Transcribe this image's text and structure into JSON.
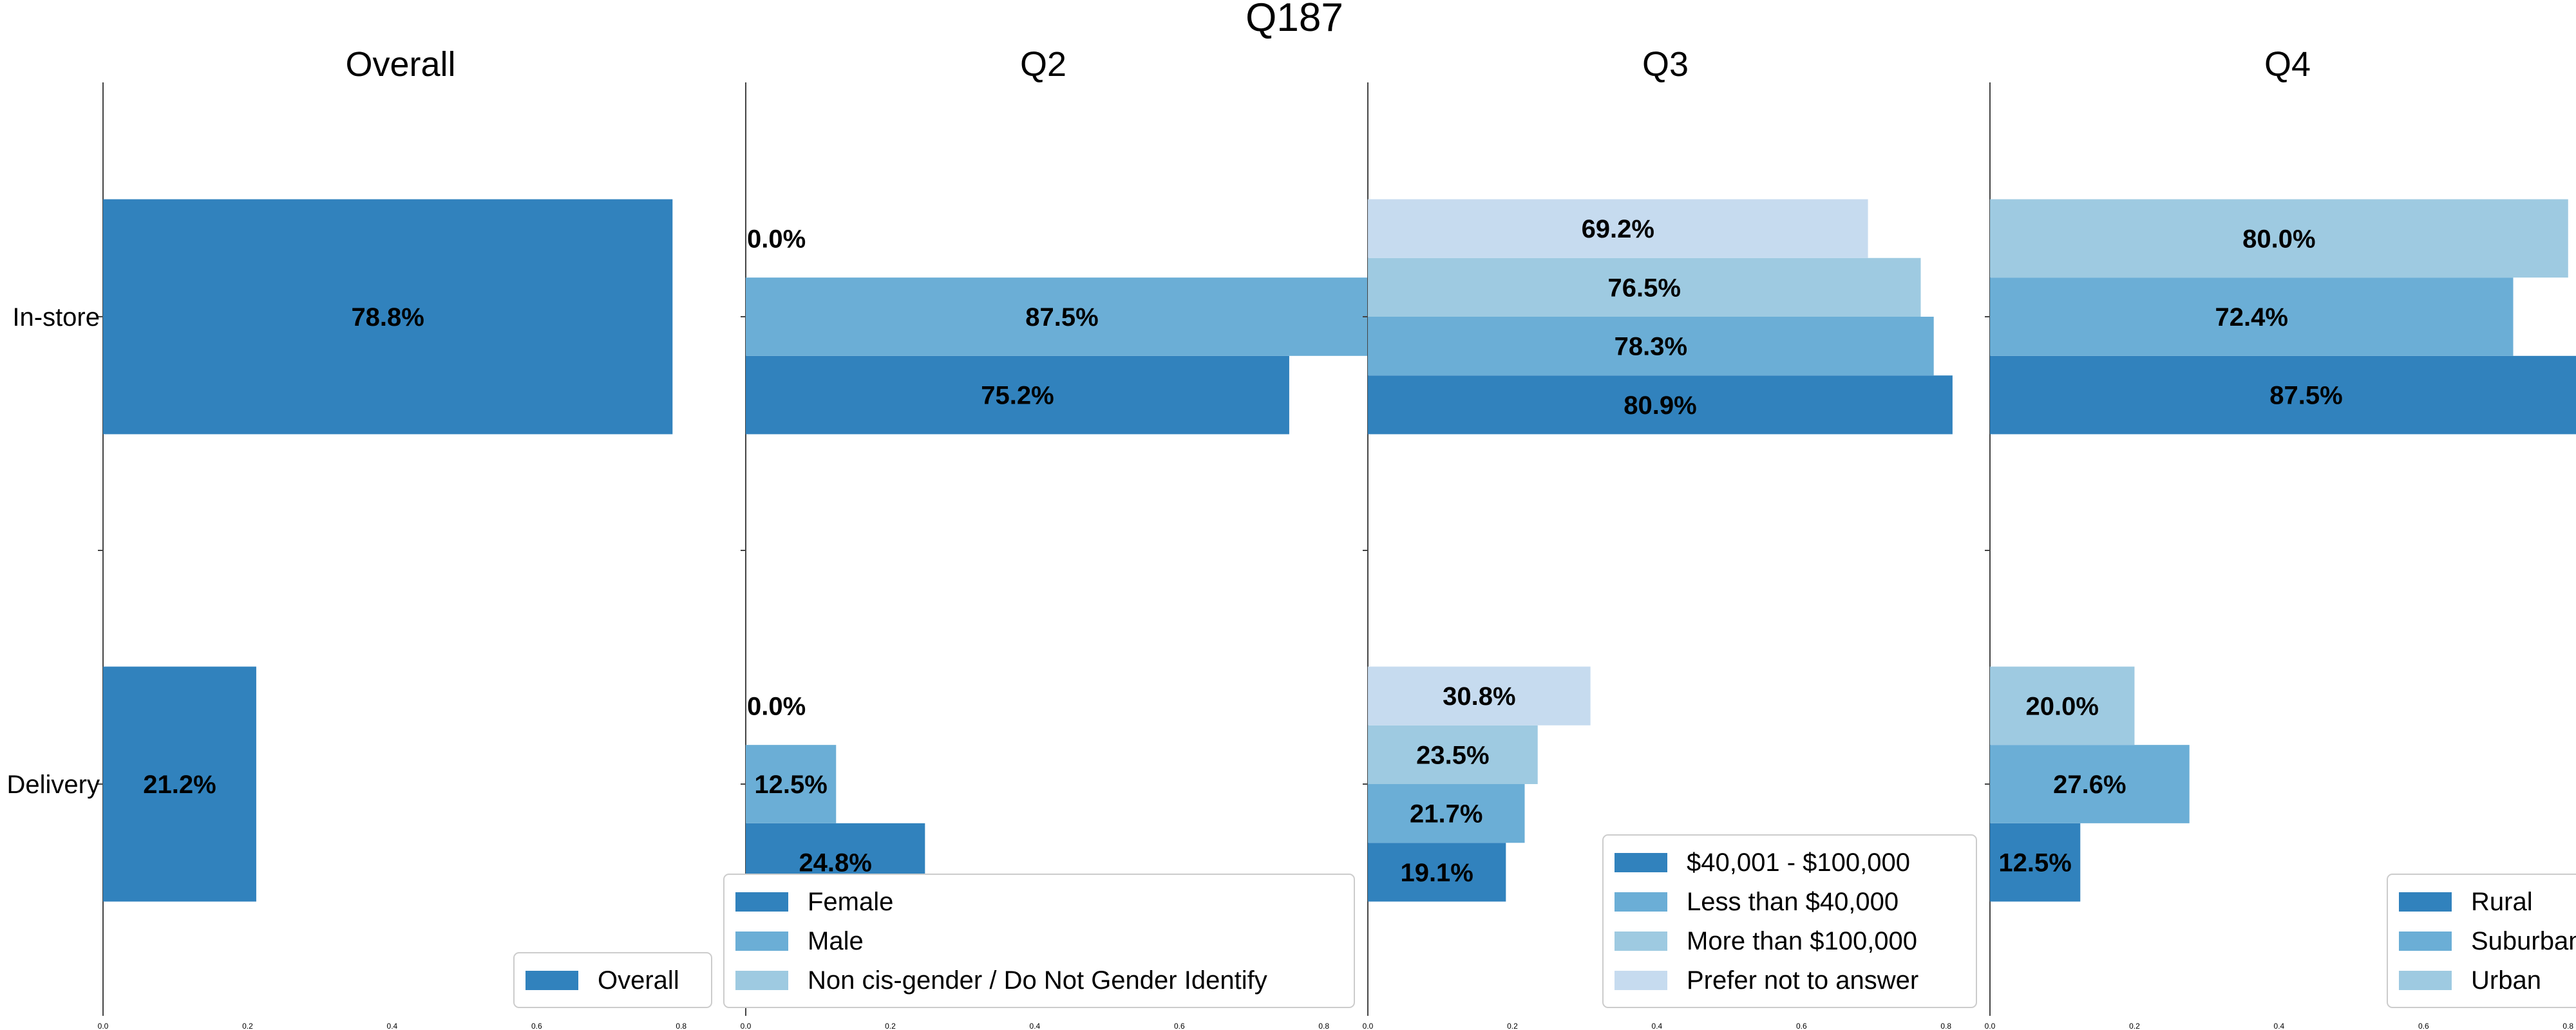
{
  "title": "Q187",
  "chart_data": [
    {
      "type": "bar",
      "orientation": "horizontal",
      "title": "Overall",
      "categories": [
        "In-store",
        "Delivery"
      ],
      "xlim": [
        0,
        0.9
      ],
      "xticks": [
        "0.0",
        "0.2",
        "0.4",
        "0.6",
        "0.8"
      ],
      "legend_position": "lower-right",
      "series": [
        {
          "name": "Overall",
          "values": [
            0.788,
            0.212
          ],
          "labels": [
            "78.8%",
            "21.2%"
          ]
        }
      ],
      "colors": [
        "#3182bd"
      ]
    },
    {
      "type": "bar",
      "orientation": "horizontal",
      "title": "Q2",
      "categories": [
        "In-store",
        "Delivery"
      ],
      "xlim": [
        0,
        0.9
      ],
      "xticks": [
        "0.0",
        "0.2",
        "0.4",
        "0.6",
        "0.8"
      ],
      "legend_position": "lower-right",
      "series": [
        {
          "name": "Female",
          "values": [
            0.752,
            0.248
          ],
          "labels": [
            "75.2%",
            "24.8%"
          ]
        },
        {
          "name": "Male",
          "values": [
            0.875,
            0.125
          ],
          "labels": [
            "87.5%",
            "12.5%"
          ]
        },
        {
          "name": "Non cis-gender / Do Not Gender Identify",
          "values": [
            0.0,
            0.0
          ],
          "labels": [
            "0.0%",
            "0.0%"
          ]
        }
      ],
      "colors": [
        "#3182bd",
        "#6baed6",
        "#9ecae1"
      ]
    },
    {
      "type": "bar",
      "orientation": "horizontal",
      "title": "Q3",
      "categories": [
        "In-store",
        "Delivery"
      ],
      "xlim": [
        0,
        0.9
      ],
      "xticks": [
        "0.0",
        "0.2",
        "0.4",
        "0.6",
        "0.8"
      ],
      "legend_position": "lower-right",
      "series": [
        {
          "name": "$40,001 - $100,000",
          "values": [
            0.809,
            0.191
          ],
          "labels": [
            "80.9%",
            "19.1%"
          ]
        },
        {
          "name": "Less than $40,000",
          "values": [
            0.783,
            0.217
          ],
          "labels": [
            "78.3%",
            "21.7%"
          ]
        },
        {
          "name": "More than $100,000",
          "values": [
            0.765,
            0.235
          ],
          "labels": [
            "76.5%",
            "23.5%"
          ]
        },
        {
          "name": "Prefer not to answer",
          "values": [
            0.692,
            0.308
          ],
          "labels": [
            "69.2%",
            "30.8%"
          ]
        }
      ],
      "colors": [
        "#3182bd",
        "#6baed6",
        "#9ecae1",
        "#c6dbef"
      ]
    },
    {
      "type": "bar",
      "orientation": "horizontal",
      "title": "Q4",
      "categories": [
        "In-store",
        "Delivery"
      ],
      "xlim": [
        0,
        0.9
      ],
      "xticks": [
        "0.0",
        "0.2",
        "0.4",
        "0.6",
        "0.8"
      ],
      "legend_position": "lower-right",
      "series": [
        {
          "name": "Rural",
          "values": [
            0.875,
            0.125
          ],
          "labels": [
            "87.5%",
            "12.5%"
          ]
        },
        {
          "name": "Suburban",
          "values": [
            0.724,
            0.276
          ],
          "labels": [
            "72.4%",
            "27.6%"
          ]
        },
        {
          "name": "Urban",
          "values": [
            0.8,
            0.2
          ],
          "labels": [
            "80.0%",
            "20.0%"
          ]
        }
      ],
      "colors": [
        "#3182bd",
        "#6baed6",
        "#9ecae1"
      ]
    }
  ]
}
